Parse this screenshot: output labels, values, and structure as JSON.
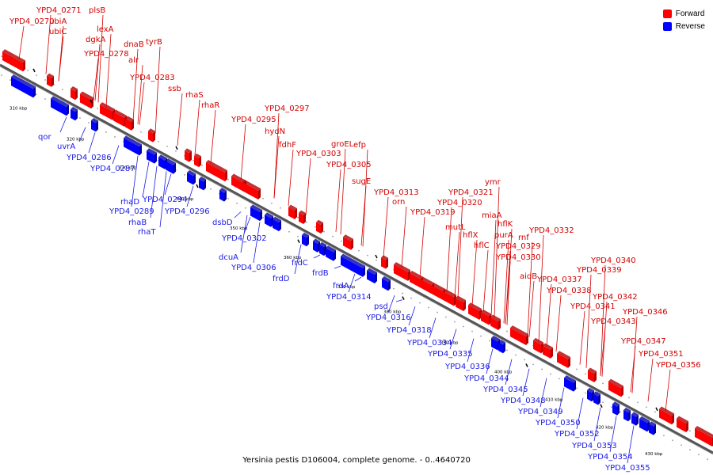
{
  "caption": "Yersinia pestis D106004, complete genome. - 0..4640720",
  "colors": {
    "forward": "#ff0000",
    "forward_dark": "#b40000",
    "reverse": "#0000ff",
    "reverse_dark": "#0000aa",
    "axis": "#555555"
  },
  "legend": [
    {
      "label": "Forward",
      "color": "#ff0000"
    },
    {
      "label": "Reverse",
      "color": "#0000ff"
    }
  ],
  "ticks": [
    "310 kbp",
    "320 kbp",
    "330 kbp",
    "340 kbp",
    "350 kbp",
    "360 kbp",
    "370 kbp",
    "380 kbp",
    "390 kbp",
    "400 kbp",
    "410 kbp",
    "420 kbp",
    "430 kbp"
  ],
  "forward_labels": [
    "YPD4_0271",
    "YPD4_0270",
    "ubiA",
    "plsB",
    "ubiC",
    "lexA",
    "dgkA",
    "YPD4_0278",
    "dnaB",
    "tyrB",
    "alr",
    "YPD4_0283",
    "ssb",
    "rhaS",
    "rhaR",
    "YPD4_0297",
    "YPD4_0295",
    "hydN",
    "fdhF",
    "YPD4_0303",
    "groEL",
    "efp",
    "YPD4_0305",
    "sugE",
    "YPD4_0313",
    "orn",
    "ymr",
    "YPD4_0321",
    "YPD4_0320",
    "YPD4_0319",
    "miaA",
    "hflK",
    "mutL",
    "hflX",
    "purA",
    "rnf",
    "hflC",
    "YPD4_0329",
    "YPD4_0330",
    "aidB",
    "YPD4_0332",
    "YPD4_0340",
    "YPD4_0339",
    "YPD4_0337",
    "YPD4_0338",
    "YPD4_0342",
    "YPD4_0341",
    "YPD4_0346",
    "YPD4_0343",
    "YPD4_0347",
    "YPD4_0351",
    "YPD4_0356"
  ],
  "reverse_labels": [
    "qor",
    "uvrA",
    "YPD4_0286",
    "YPD4_0287",
    "rhaD",
    "YPD4_0294",
    "YPD4_0289",
    "rhaB",
    "YPD4_0296",
    "rhaT",
    "dsbD",
    "YPD4_0302",
    "dcuA",
    "YPD4_0306",
    "frdC",
    "frdD",
    "frdB",
    "frdA",
    "YPD4_0314",
    "psd",
    "YPD4_0316",
    "YPD4_0318",
    "YPD4_0334",
    "YPD4_0335",
    "YPD4_0336",
    "YPD4_0344",
    "YPD4_0345",
    "YPD4_0348",
    "YPD4_0349",
    "YPD4_0350",
    "YPD4_0352",
    "YPD4_0353",
    "YPD4_0354",
    "YPD4_0355"
  ]
}
